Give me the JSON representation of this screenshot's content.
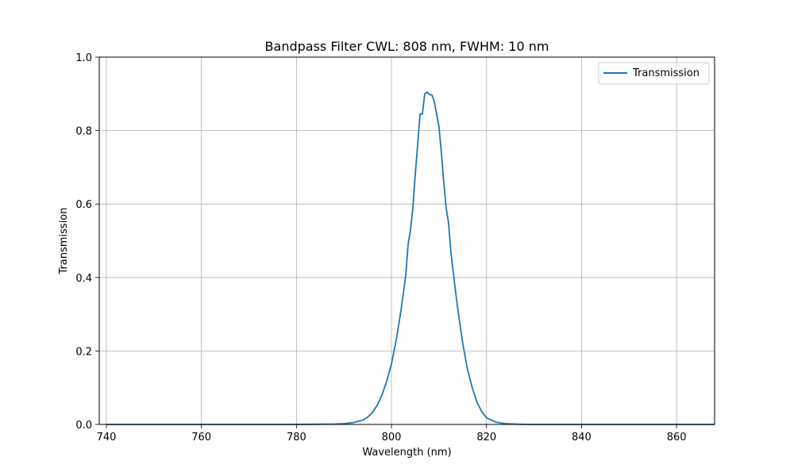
{
  "chart_data": {
    "type": "line",
    "title": "Bandpass Filter CWL: 808 nm, FWHM: 10 nm",
    "xlabel": "Wavelength (nm)",
    "ylabel": "Transmission",
    "xlim": [
      738.5,
      868
    ],
    "ylim": [
      0,
      1
    ],
    "xticks": [
      740,
      760,
      780,
      800,
      820,
      840,
      860
    ],
    "yticks": [
      "0.0",
      "0.2",
      "0.4",
      "0.6",
      "0.8",
      "1.0"
    ],
    "grid": true,
    "legend": "top-right",
    "series": [
      {
        "name": "Transmission",
        "color": "#1f77b4",
        "x": [
          740,
          760,
          780,
          788,
          790,
          792,
          794,
          795,
          796,
          797,
          798,
          799,
          800,
          801,
          802,
          803,
          803.5,
          804,
          804.5,
          805,
          805.5,
          806,
          806.5,
          807,
          807.5,
          808,
          808.5,
          809,
          809.5,
          810,
          810.5,
          811,
          811.5,
          812,
          812.5,
          813,
          813.5,
          814,
          815,
          816,
          817,
          818,
          819,
          820,
          822,
          824,
          826,
          828,
          830,
          840,
          850,
          868
        ],
        "y": [
          0,
          0,
          0,
          0.001,
          0.002,
          0.005,
          0.012,
          0.02,
          0.033,
          0.052,
          0.08,
          0.118,
          0.165,
          0.23,
          0.31,
          0.405,
          0.49,
          0.53,
          0.59,
          0.68,
          0.76,
          0.845,
          0.845,
          0.9,
          0.905,
          0.898,
          0.897,
          0.88,
          0.845,
          0.81,
          0.74,
          0.66,
          0.59,
          0.55,
          0.47,
          0.415,
          0.36,
          0.31,
          0.22,
          0.15,
          0.1,
          0.06,
          0.035,
          0.018,
          0.006,
          0.002,
          0.001,
          0,
          0,
          0,
          0,
          0
        ]
      }
    ]
  }
}
